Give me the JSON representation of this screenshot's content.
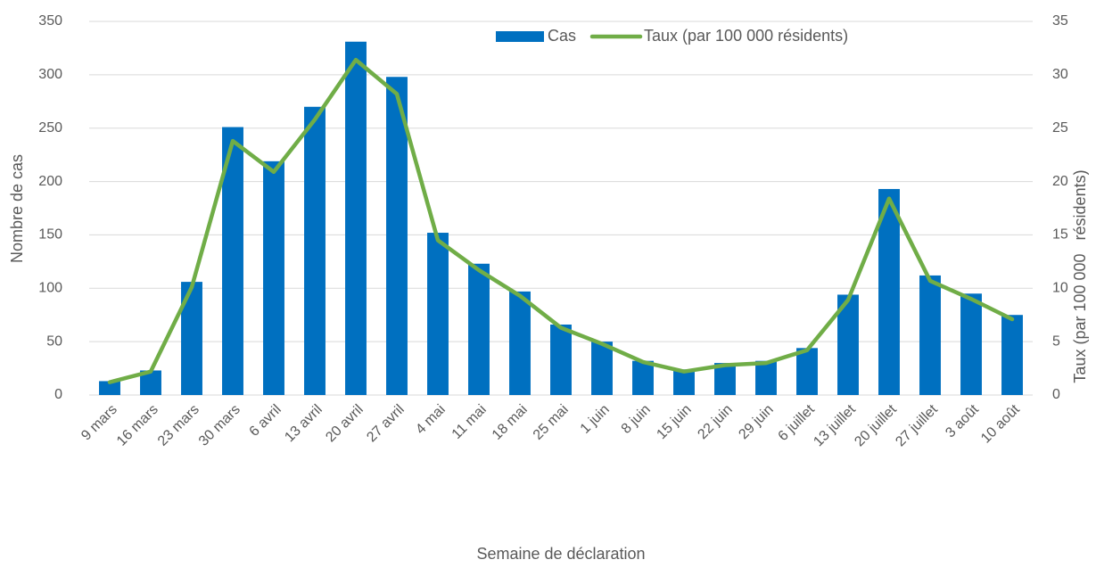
{
  "chart_data": {
    "type": "bar",
    "x_label": "Semaine de déclaration",
    "y_label": "Nombre de cas",
    "y2_label": "Taux (par 100 000   résidents)",
    "categories": [
      "9 mars",
      "16 mars",
      "23 mars",
      "30 mars",
      "6 avril",
      "13 avril",
      "20 avril",
      "27 avril",
      "4 mai",
      "11 mai",
      "18 mai",
      "25 mai",
      "1 juin",
      "8 juin",
      "15 juin",
      "22 juin",
      "29 juin",
      "6 juillet",
      "13 juillet",
      "20 juillet",
      "27 juillet",
      "3 août",
      "10 août"
    ],
    "series": [
      {
        "name": "Cas",
        "type": "bar",
        "color": "#0070c0",
        "values": [
          13,
          23,
          106,
          251,
          219,
          270,
          331,
          298,
          152,
          123,
          97,
          66,
          50,
          32,
          24,
          30,
          32,
          44,
          94,
          193,
          112,
          95,
          75
        ]
      },
      {
        "name": "Taux (par 100 000 résidents)",
        "type": "line",
        "axis": "y2",
        "color": "#70ad47",
        "values": [
          1.2,
          2.2,
          10.1,
          23.8,
          20.9,
          25.8,
          31.4,
          28.2,
          14.5,
          11.7,
          9.3,
          6.3,
          4.8,
          3.1,
          2.2,
          2.8,
          3.0,
          4.2,
          8.9,
          18.4,
          10.7,
          9.0,
          7.1
        ]
      }
    ],
    "ylim": [
      0,
      350
    ],
    "yticks": [
      0,
      50,
      100,
      150,
      200,
      250,
      300,
      350
    ],
    "y2lim": [
      0,
      35
    ],
    "y2ticks": [
      0,
      5,
      10,
      15,
      20,
      25,
      30,
      35
    ],
    "grid": true,
    "legend": "top"
  }
}
